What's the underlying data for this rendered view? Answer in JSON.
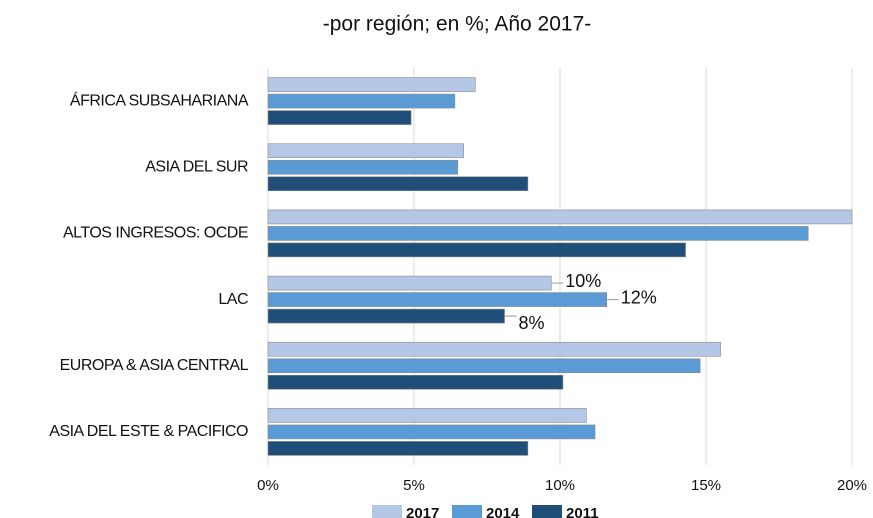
{
  "chart_data": {
    "type": "bar",
    "orientation": "horizontal",
    "title": "-por región; en %; Año 2017-",
    "categories": [
      "ÁFRICA SUBSAHARIANA",
      "ASIA DEL SUR",
      "ALTOS INGRESOS: OCDE",
      "LAC",
      "EUROPA & ASIA CENTRAL",
      "ASIA DEL ESTE & PACIFICO"
    ],
    "series": [
      {
        "name": "2017",
        "color": "#b4c7e7",
        "values": [
          7.1,
          6.7,
          20.0,
          9.7,
          15.5,
          10.9
        ],
        "value_labels": [
          null,
          null,
          null,
          "10%",
          null,
          null
        ]
      },
      {
        "name": "2014",
        "color": "#5b9bd5",
        "values": [
          6.4,
          6.5,
          18.5,
          11.6,
          14.8,
          11.2
        ],
        "value_labels": [
          null,
          null,
          null,
          "12%",
          null,
          null
        ]
      },
      {
        "name": "2011",
        "color": "#1f4e79",
        "values": [
          4.9,
          8.9,
          14.3,
          8.1,
          10.1,
          8.9
        ],
        "value_labels": [
          null,
          null,
          null,
          "8%",
          null,
          null
        ]
      }
    ],
    "xlim": [
      0,
      20
    ],
    "xticks": [
      {
        "value": 0,
        "label": "0%"
      },
      {
        "value": 5,
        "label": "5%"
      },
      {
        "value": 10,
        "label": "10%"
      },
      {
        "value": 15,
        "label": "15%"
      },
      {
        "value": 20,
        "label": "20%"
      }
    ],
    "grid": true,
    "legend": "bottom"
  }
}
